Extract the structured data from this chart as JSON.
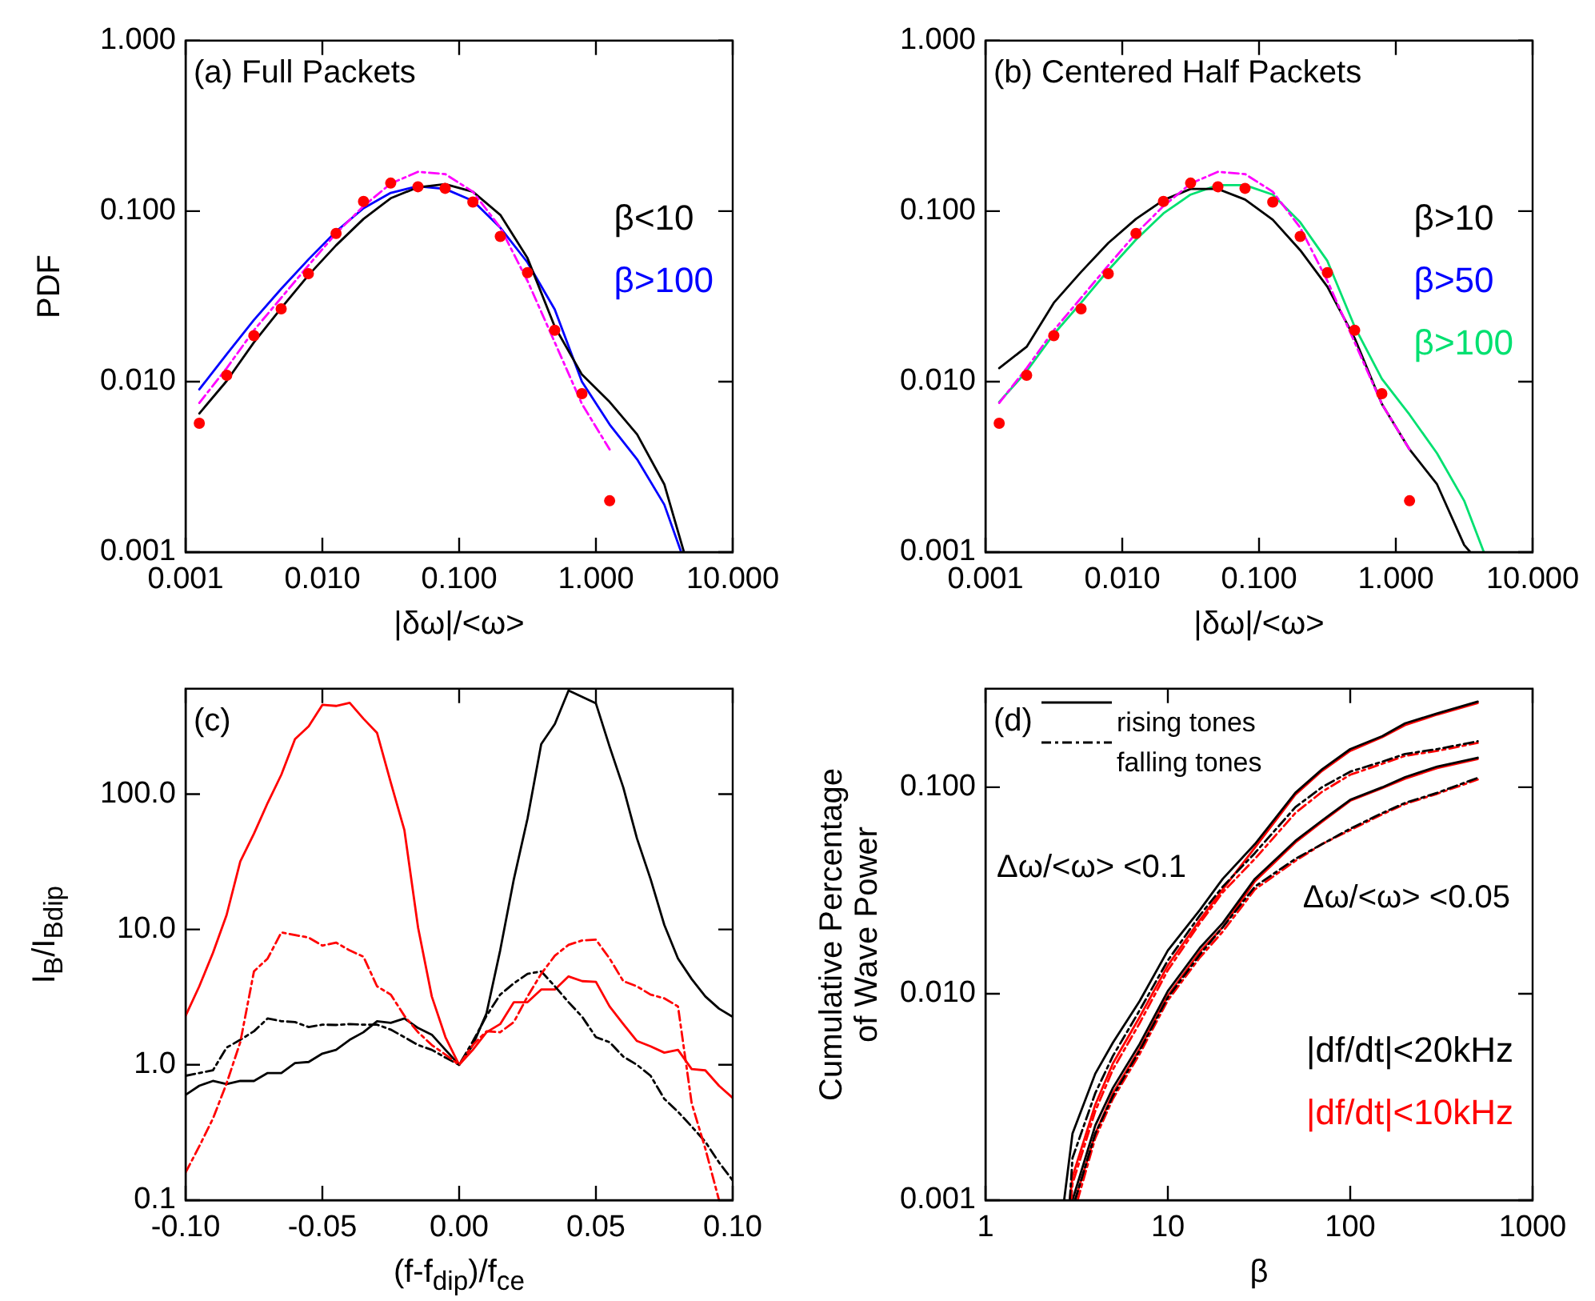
{
  "chart_data": [
    {
      "type": "line",
      "title": "(a) Full Packets",
      "xlabel": "|δω|/<ω>",
      "ylabel": "PDF",
      "log": "xy",
      "legend": "right",
      "xlim": [
        0.001,
        10
      ],
      "ylim": [
        0.001,
        1
      ],
      "xticks": [
        {
          "value": 0.001,
          "label": "0.001"
        },
        {
          "value": 0.01,
          "label": "0.010"
        },
        {
          "value": 0.1,
          "label": "0.100"
        },
        {
          "value": 1,
          "label": "1.000"
        },
        {
          "value": 10,
          "label": "10.000"
        }
      ],
      "yticks": [
        {
          "value": 0.001,
          "label": "0.001"
        },
        {
          "value": 0.01,
          "label": "0.010"
        },
        {
          "value": 0.1,
          "label": "0.100"
        },
        {
          "value": 1,
          "label": "1.000"
        }
      ],
      "series": [
        {
          "name": "β<10",
          "color": "#000000",
          "x": [
            0.00126,
            0.002,
            0.00316,
            0.005,
            0.0079,
            0.0126,
            0.02,
            0.0316,
            0.05,
            0.079,
            0.126,
            0.2,
            0.316,
            0.5,
            0.79,
            1.26,
            2.0,
            3.16,
            4.4
          ],
          "values": [
            0.0065,
            0.0101,
            0.017,
            0.027,
            0.042,
            0.063,
            0.09,
            0.119,
            0.138,
            0.144,
            0.13,
            0.095,
            0.053,
            0.021,
            0.011,
            0.0076,
            0.0049,
            0.0025,
            0.001
          ]
        },
        {
          "name": "β>100",
          "color": "#0000ff",
          "x": [
            0.00126,
            0.002,
            0.00316,
            0.005,
            0.0079,
            0.0126,
            0.02,
            0.0316,
            0.05,
            0.079,
            0.126,
            0.2,
            0.316,
            0.5,
            0.79,
            1.26,
            2.0,
            3.16,
            4.2
          ],
          "values": [
            0.009,
            0.0145,
            0.023,
            0.035,
            0.052,
            0.076,
            0.104,
            0.128,
            0.14,
            0.135,
            0.115,
            0.08,
            0.05,
            0.0265,
            0.01,
            0.0056,
            0.0035,
            0.0019,
            0.001
          ]
        },
        {
          "color": "#ff00ff",
          "line_style": "dashed",
          "x": [
            0.00126,
            0.002,
            0.00316,
            0.005,
            0.0079,
            0.0126,
            0.02,
            0.0316,
            0.05,
            0.079,
            0.126,
            0.2,
            0.316,
            0.5,
            0.79,
            1.26
          ],
          "values": [
            0.0075,
            0.012,
            0.02,
            0.031,
            0.048,
            0.074,
            0.107,
            0.145,
            0.17,
            0.165,
            0.13,
            0.08,
            0.039,
            0.017,
            0.0074,
            0.004
          ]
        },
        {
          "type": "scatter",
          "marker": "circle",
          "color": "#ff0000",
          "x": [
            0.00126,
            0.002,
            0.00316,
            0.005,
            0.0079,
            0.0126,
            0.02,
            0.0316,
            0.05,
            0.079,
            0.126,
            0.2,
            0.316,
            0.5,
            0.79,
            1.26
          ],
          "values": [
            0.0057,
            0.0109,
            0.0186,
            0.0267,
            0.043,
            0.074,
            0.114,
            0.146,
            0.139,
            0.136,
            0.113,
            0.071,
            0.0436,
            0.02,
            0.0085,
            0.002
          ]
        }
      ]
    },
    {
      "type": "line",
      "title": "(b) Centered Half Packets",
      "xlabel": "|δω|/<ω>",
      "log": "xy",
      "legend": "right",
      "xlim": [
        0.001,
        10
      ],
      "ylim": [
        0.001,
        1
      ],
      "xticks": [
        {
          "value": 0.001,
          "label": "0.001"
        },
        {
          "value": 0.01,
          "label": "0.010"
        },
        {
          "value": 0.1,
          "label": "0.100"
        },
        {
          "value": 1,
          "label": "1.000"
        },
        {
          "value": 10,
          "label": "10.000"
        }
      ],
      "yticks": [
        {
          "value": 0.001,
          "label": "0.001"
        },
        {
          "value": 0.01,
          "label": "0.010"
        },
        {
          "value": 0.1,
          "label": "0.100"
        },
        {
          "value": 1,
          "label": "1.000"
        }
      ],
      "series": [
        {
          "name": "β>10",
          "color": "#000000",
          "x": [
            0.00126,
            0.002,
            0.00316,
            0.005,
            0.0079,
            0.0126,
            0.02,
            0.0316,
            0.05,
            0.079,
            0.126,
            0.2,
            0.316,
            0.5,
            0.79,
            1.26,
            2.0,
            3.16,
            3.5
          ],
          "values": [
            0.012,
            0.016,
            0.029,
            0.044,
            0.065,
            0.09,
            0.116,
            0.135,
            0.135,
            0.117,
            0.089,
            0.059,
            0.036,
            0.018,
            0.0074,
            0.004,
            0.0025,
            0.0011,
            0.001
          ]
        },
        {
          "name": "β>50",
          "color": "#0000ff"
        },
        {
          "name": "β>100",
          "color": "#00e070",
          "x": [
            0.00126,
            0.002,
            0.00316,
            0.005,
            0.0079,
            0.0126,
            0.02,
            0.0316,
            0.05,
            0.079,
            0.126,
            0.2,
            0.316,
            0.5,
            0.79,
            1.26,
            2.0,
            3.16,
            4.4
          ],
          "values": [
            0.0076,
            0.0115,
            0.019,
            0.029,
            0.045,
            0.068,
            0.097,
            0.125,
            0.142,
            0.142,
            0.125,
            0.086,
            0.051,
            0.021,
            0.0104,
            0.0064,
            0.0038,
            0.002,
            0.001
          ]
        },
        {
          "color": "#ff00ff",
          "line_style": "dashed",
          "x": [
            0.00126,
            0.002,
            0.00316,
            0.005,
            0.0079,
            0.0126,
            0.02,
            0.0316,
            0.05,
            0.079,
            0.126,
            0.2,
            0.316,
            0.5,
            0.79,
            1.26
          ],
          "values": [
            0.0075,
            0.012,
            0.02,
            0.031,
            0.048,
            0.074,
            0.107,
            0.145,
            0.17,
            0.165,
            0.13,
            0.08,
            0.039,
            0.017,
            0.0074,
            0.004
          ]
        },
        {
          "type": "scatter",
          "marker": "circle",
          "color": "#ff0000",
          "x": [
            0.00126,
            0.002,
            0.00316,
            0.005,
            0.0079,
            0.0126,
            0.02,
            0.0316,
            0.05,
            0.079,
            0.126,
            0.2,
            0.316,
            0.5,
            0.79,
            1.26
          ],
          "values": [
            0.0057,
            0.0109,
            0.0186,
            0.0267,
            0.043,
            0.074,
            0.114,
            0.146,
            0.139,
            0.136,
            0.113,
            0.071,
            0.0436,
            0.02,
            0.0085,
            0.002
          ]
        }
      ]
    },
    {
      "type": "line",
      "title": "(c)",
      "xlabel": "(f-f$_{dip}$)/f$_{ce}$",
      "ylabel": "I$_{B}$/I$_{Bdip}$",
      "log": "y",
      "xlim": [
        -0.1,
        0.1
      ],
      "ylim": [
        0.1,
        600
      ],
      "xticks": [
        {
          "value": -0.1,
          "label": "-0.10"
        },
        -0.05,
        {
          "value": 0,
          "label": "0.00"
        },
        0.05,
        {
          "value": 0.1,
          "label": "0.10"
        }
      ],
      "yticks": [
        0.1,
        {
          "value": 1,
          "label": "1.0"
        },
        {
          "value": 10,
          "label": "10.0"
        },
        {
          "value": 100,
          "label": "100.0"
        }
      ],
      "x": [
        -0.1,
        -0.095,
        -0.09,
        -0.085,
        -0.08,
        -0.075,
        -0.07,
        -0.065,
        -0.06,
        -0.055,
        -0.05,
        -0.045,
        -0.04,
        -0.035,
        -0.03,
        -0.025,
        -0.02,
        -0.015,
        -0.01,
        -0.005,
        0,
        0.005,
        0.01,
        0.015,
        0.02,
        0.025,
        0.03,
        0.035,
        0.04,
        0.045,
        0.05,
        0.055,
        0.06,
        0.065,
        0.07,
        0.075,
        0.08,
        0.085,
        0.09,
        0.095,
        0.1
      ],
      "series": [
        {
          "color": "#ff0000",
          "values": [
            2.3,
            3.8,
            6.7,
            12.8,
            31.8,
            51,
            86,
            139,
            255,
            317,
            456,
            448,
            472,
            361,
            283,
            122,
            54,
            10.3,
            3.2,
            1.6,
            1.0,
            1.29,
            1.74,
            2.0,
            2.9,
            2.9,
            3.6,
            3.6,
            4.5,
            4.15,
            4.1,
            2.7,
            2.0,
            1.5,
            1.37,
            1.23,
            1.29,
            0.93,
            0.91,
            0.7,
            0.57
          ]
        },
        {
          "color": "#000000",
          "values": [
            0.6,
            0.7,
            0.76,
            0.72,
            0.76,
            0.76,
            0.87,
            0.87,
            1.03,
            1.05,
            1.21,
            1.29,
            1.53,
            1.74,
            2.1,
            2.04,
            2.2,
            1.87,
            1.67,
            1.29,
            1.0,
            1.4,
            2.4,
            7.0,
            23.5,
            66,
            234,
            330,
            582,
            522,
            468,
            224,
            112,
            47,
            23.5,
            10.8,
            6.1,
            4.3,
            3.2,
            2.6,
            2.26
          ]
        },
        {
          "color": "#ff0000",
          "line_style": "dashed",
          "values": [
            0.16,
            0.25,
            0.4,
            0.73,
            1.47,
            4.9,
            6.1,
            9.5,
            9.1,
            8.7,
            7.6,
            8.0,
            7.0,
            6.3,
            3.8,
            3.3,
            2.3,
            1.74,
            1.4,
            1.19,
            1.0,
            1.4,
            1.77,
            1.74,
            2.07,
            3.2,
            4.7,
            6.4,
            7.7,
            8.3,
            8.4,
            6.1,
            4.15,
            3.8,
            3.3,
            3.1,
            2.7,
            0.52,
            0.24,
            0.1,
            null
          ]
        },
        {
          "color": "#000000",
          "line_style": "dashed",
          "values": [
            0.83,
            0.87,
            0.91,
            1.34,
            1.53,
            1.77,
            2.2,
            2.1,
            2.07,
            1.9,
            1.98,
            1.97,
            2.0,
            1.98,
            1.98,
            1.82,
            1.6,
            1.4,
            1.29,
            1.13,
            1.0,
            1.49,
            2.3,
            3.3,
            4.0,
            4.7,
            4.9,
            3.8,
            2.9,
            2.26,
            1.6,
            1.47,
            1.15,
            1.0,
            0.83,
            0.56,
            0.45,
            0.35,
            0.27,
            0.19,
            0.14
          ]
        }
      ]
    },
    {
      "type": "line",
      "title": "(d)",
      "xlabel": "β",
      "ylabel": "Cumulative Percentage of Wave Power",
      "log": "xy",
      "legend": "bottom right",
      "xlim": [
        1,
        1000
      ],
      "ylim": [
        0.001,
        0.3
      ],
      "xticks": [
        1,
        10,
        100,
        1000
      ],
      "yticks": [
        {
          "value": 0.001,
          "label": "0.001"
        },
        {
          "value": 0.01,
          "label": "0.010"
        },
        {
          "value": 0.1,
          "label": "0.100"
        }
      ],
      "annotations": [
        "rising tones",
        "falling tones",
        "Δω/<ω> <0.1",
        "Δω/<ω> <0.05"
      ],
      "series": [
        {
          "name": "|df/dt|<20kHz",
          "color": "#000000",
          "x": [
            2.7,
            3,
            4,
            5,
            7,
            10,
            15,
            20,
            30,
            50,
            70,
            100,
            150,
            200,
            300,
            500
          ],
          "values": [
            0.001,
            0.0021,
            0.0041,
            0.0058,
            0.0092,
            0.0162,
            0.0255,
            0.036,
            0.053,
            0.094,
            0.122,
            0.153,
            0.177,
            0.204,
            0.228,
            0.26
          ]
        },
        {
          "name": "|df/dt|<10kHz",
          "color": "#ff0000",
          "x": [
            2.9,
            3,
            4,
            5,
            7,
            10,
            15,
            20,
            30,
            50,
            70,
            100,
            150,
            200,
            300,
            500
          ],
          "values": [
            0.001,
            0.0013,
            0.0029,
            0.0046,
            0.0077,
            0.0137,
            0.0228,
            0.032,
            0.051,
            0.092,
            0.12,
            0.15,
            0.175,
            0.2,
            0.225,
            0.256
          ]
        },
        {
          "color": "#000000",
          "line_style": "dashed",
          "x": [
            2.9,
            3,
            4,
            5,
            7,
            10,
            15,
            20,
            30,
            50,
            70,
            100,
            150,
            200,
            300,
            500
          ],
          "values": [
            0.001,
            0.0016,
            0.0033,
            0.005,
            0.0083,
            0.0145,
            0.024,
            0.033,
            0.048,
            0.08,
            0.1,
            0.119,
            0.133,
            0.145,
            0.153,
            0.167
          ]
        },
        {
          "color": "#ff0000",
          "line_style": "dashed",
          "x": [
            2.95,
            3,
            4,
            5,
            7,
            10,
            15,
            20,
            30,
            50,
            70,
            100,
            150,
            200,
            300,
            500
          ],
          "values": [
            0.001,
            0.0012,
            0.0027,
            0.0043,
            0.0072,
            0.013,
            0.022,
            0.031,
            0.045,
            0.075,
            0.095,
            0.115,
            0.13,
            0.142,
            0.15,
            0.164
          ]
        },
        {
          "color": "#000000",
          "x": [
            3,
            4,
            5,
            7,
            10,
            15,
            20,
            30,
            50,
            70,
            100,
            150,
            200,
            300,
            500
          ],
          "values": [
            0.001,
            0.0023,
            0.0035,
            0.0057,
            0.0103,
            0.0167,
            0.022,
            0.036,
            0.055,
            0.069,
            0.087,
            0.1,
            0.112,
            0.126,
            0.139
          ]
        },
        {
          "color": "#ff0000",
          "x": [
            3.1,
            4,
            5,
            7,
            10,
            15,
            20,
            30,
            50,
            70,
            100,
            150,
            200,
            300,
            500
          ],
          "values": [
            0.001,
            0.0021,
            0.0033,
            0.0054,
            0.0098,
            0.016,
            0.021,
            0.035,
            0.054,
            0.068,
            0.086,
            0.099,
            0.11,
            0.124,
            0.137
          ]
        },
        {
          "color": "#000000",
          "line_style": "dashed",
          "x": [
            3.1,
            4,
            5,
            7,
            10,
            15,
            20,
            30,
            50,
            70,
            100,
            150,
            200,
            300,
            500
          ],
          "values": [
            0.001,
            0.0021,
            0.0032,
            0.0053,
            0.0096,
            0.0155,
            0.021,
            0.033,
            0.045,
            0.053,
            0.063,
            0.075,
            0.084,
            0.094,
            0.111
          ]
        },
        {
          "color": "#ff0000",
          "line_style": "dashed",
          "x": [
            3.2,
            4,
            5,
            7,
            10,
            15,
            20,
            30,
            50,
            70,
            100,
            150,
            200,
            300,
            500
          ],
          "values": [
            0.001,
            0.002,
            0.0031,
            0.0051,
            0.0093,
            0.015,
            0.02,
            0.032,
            0.044,
            0.053,
            0.062,
            0.074,
            0.083,
            0.093,
            0.109
          ]
        }
      ]
    }
  ]
}
